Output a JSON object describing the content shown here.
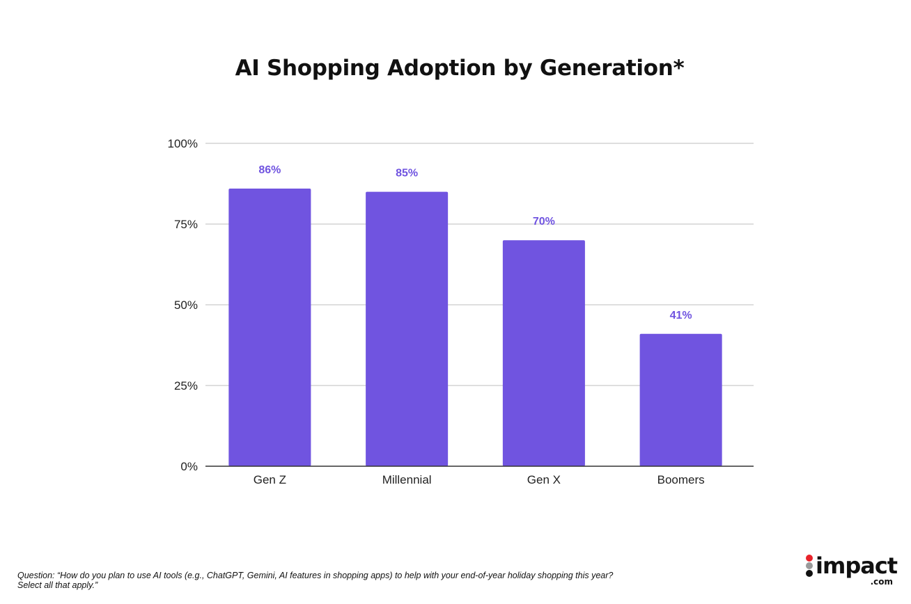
{
  "chart_data": {
    "type": "bar",
    "title": "AI Shopping Adoption by Generation*",
    "categories": [
      "Gen Z",
      "Millennial",
      "Gen X",
      "Boomers"
    ],
    "values": [
      86,
      85,
      70,
      41
    ],
    "data_labels": [
      "86%",
      "85%",
      "70%",
      "41%"
    ],
    "xlabel": "",
    "ylabel": "",
    "ylim": [
      0,
      100
    ],
    "y_ticks": [
      0,
      25,
      50,
      75,
      100
    ],
    "y_tick_labels": [
      "0%",
      "25%",
      "50%",
      "75%",
      "100%"
    ],
    "grid": true,
    "legend": "none",
    "bar_color": "#7054e0",
    "label_color": "#7054e0"
  },
  "footnote": {
    "line1": "Question: “How do you plan to use AI tools (e.g., ChatGPT, Gemini, AI features in shopping apps) to help with your end-of-year holiday shopping this year?",
    "line2": "Select all that apply.”"
  },
  "logo": {
    "word": "impact",
    "suffix": ".com",
    "colors": [
      "#e8232a",
      "#9a9a9a",
      "#111111"
    ]
  }
}
